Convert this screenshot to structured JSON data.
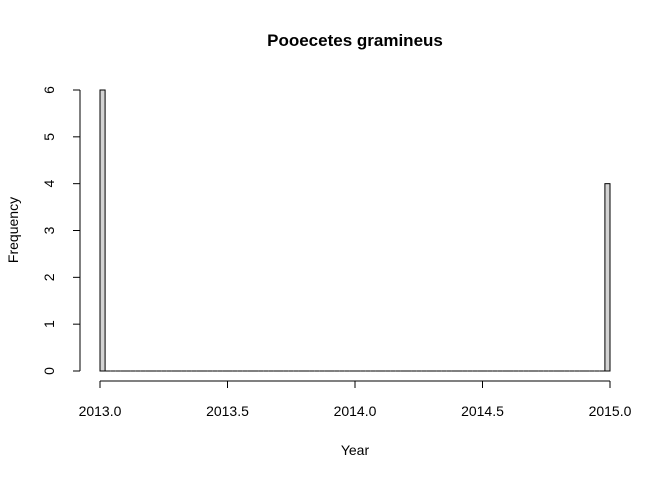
{
  "chart_data": {
    "type": "bar",
    "title": "Pooecetes gramineus",
    "xlabel": "Year",
    "ylabel": "Frequency",
    "xlim": [
      2013.0,
      2015.0
    ],
    "ylim": [
      0,
      6
    ],
    "bin_width": 0.02,
    "x_ticks": [
      2013.0,
      2013.5,
      2014.0,
      2014.5,
      2015.0
    ],
    "x_tick_labels": [
      "2013.0",
      "2013.5",
      "2014.0",
      "2014.5",
      "2015.0"
    ],
    "y_ticks": [
      0,
      1,
      2,
      3,
      4,
      5,
      6
    ],
    "y_tick_labels": [
      "0",
      "1",
      "2",
      "3",
      "4",
      "5",
      "6"
    ],
    "bins": [
      {
        "start": 2013.0,
        "end": 2013.02,
        "count": 6
      },
      {
        "start": 2014.98,
        "end": 2015.0,
        "count": 4
      }
    ],
    "grid": false,
    "bar_color": "#d3d3d3",
    "colors": {
      "bar_fill": "#d3d3d3",
      "bar_stroke": "#000000"
    }
  }
}
